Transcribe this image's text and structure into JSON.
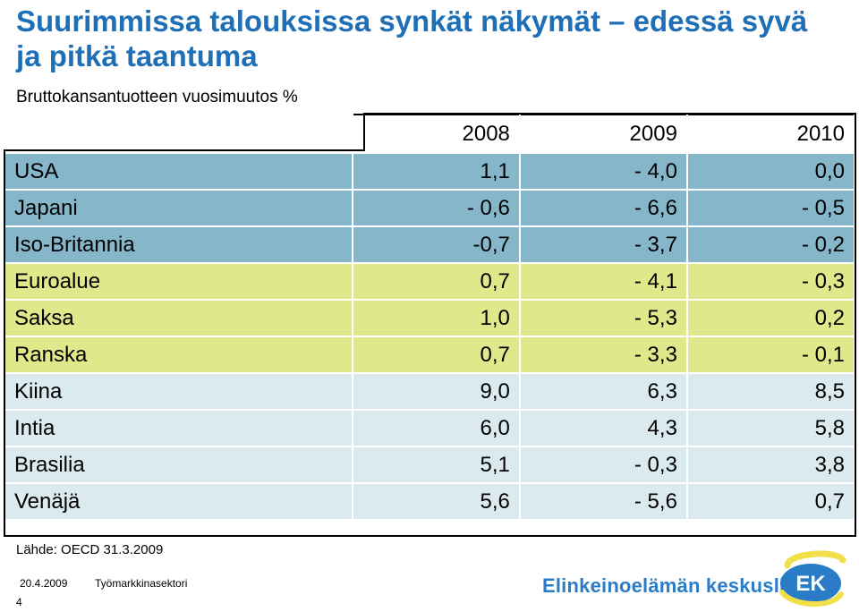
{
  "title": "Suurimmissa talouksissa synkät näkymät – edessä syvä ja pitkä taantuma",
  "subtitle": "Bruttokansantuotteen vuosimuutos %",
  "table": {
    "headers": [
      "",
      "2008",
      "2009",
      "2010"
    ],
    "rows": [
      {
        "country": "USA",
        "values": [
          "1,1",
          "- 4,0",
          "0,0"
        ],
        "group": "blue"
      },
      {
        "country": "Japani",
        "values": [
          "- 0,6",
          "- 6,6",
          "- 0,5"
        ],
        "group": "blue"
      },
      {
        "country": "Iso-Britannia",
        "values": [
          "-0,7",
          "- 3,7",
          "- 0,2"
        ],
        "group": "blue"
      },
      {
        "country": "Euroalue",
        "values": [
          "0,7",
          "- 4,1",
          "- 0,3"
        ],
        "group": "green"
      },
      {
        "country": "Saksa",
        "values": [
          "1,0",
          "- 5,3",
          "0,2"
        ],
        "group": "green"
      },
      {
        "country": "Ranska",
        "values": [
          "0,7",
          "- 3,3",
          "- 0,1"
        ],
        "group": "green"
      },
      {
        "country": "Kiina",
        "values": [
          "9,0",
          "6,3",
          "8,5"
        ],
        "group": "light"
      },
      {
        "country": "Intia",
        "values": [
          "6,0",
          "4,3",
          "5,8"
        ],
        "group": "light"
      },
      {
        "country": "Brasilia",
        "values": [
          "5,1",
          "- 0,3",
          "3,8"
        ],
        "group": "light"
      },
      {
        "country": "Venäjä",
        "values": [
          "5,6",
          "- 5,6",
          "0,7"
        ],
        "group": "light"
      }
    ]
  },
  "colors": {
    "blue": "#86b6ca",
    "green": "#dfe88a",
    "light": "#dbeaef",
    "title": "#1f6fb6",
    "brand": "#2a7cc7",
    "logo_yellow": "#f2e04a"
  },
  "source": "Lähde: OECD 31.3.2009",
  "footer": {
    "date": "20.4.2009",
    "sector": "Työmarkkinasektori",
    "page": "4",
    "org": "Elinkeinoelämän keskusliitto",
    "logo_text": "EK"
  }
}
